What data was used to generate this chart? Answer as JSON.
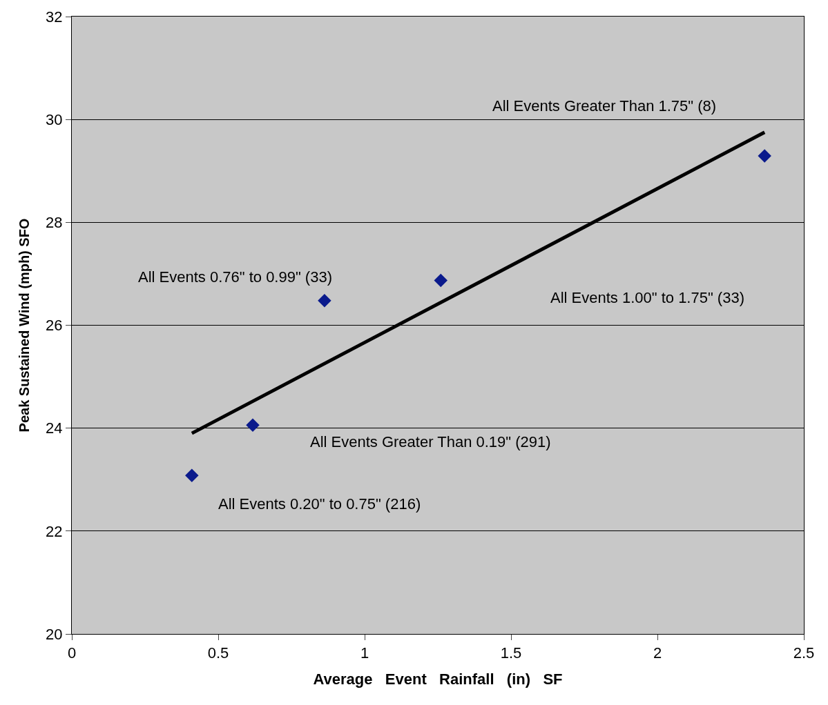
{
  "chart_data": {
    "type": "scatter",
    "xlabel": "Average   Event   Rainfall   (in)   SF",
    "ylabel": "Peak Sustained Wind (mph) SFO",
    "x": [
      0.41,
      0.618,
      0.863,
      1.26,
      2.366
    ],
    "series": [
      {
        "color": "#0a1a8c",
        "values": [
          23.08,
          24.06,
          26.48,
          26.87,
          29.29
        ],
        "marker": "diamond"
      },
      {
        "type": "line",
        "color": "#000000",
        "x": [
          0.41,
          2.366
        ],
        "values": [
          23.9,
          29.75
        ],
        "line_style": "solid"
      }
    ],
    "annotations": [
      "All Events 0.20\" to 0.75\" (216)",
      "All Events Greater Than 0.19\" (291)",
      "All Events 0.76\" to 0.99\" (33)",
      "All Events 1.00\" to 1.75\" (33)",
      "All Events Greater Than 1.75\" (8)"
    ],
    "xlim": [
      0,
      2.5
    ],
    "xticks": [
      0,
      0.5,
      1,
      1.5,
      2,
      2.5
    ],
    "ylim": [
      20,
      32
    ],
    "yticks": [
      20,
      22,
      24,
      26,
      28,
      30,
      32
    ],
    "grid": "y"
  }
}
